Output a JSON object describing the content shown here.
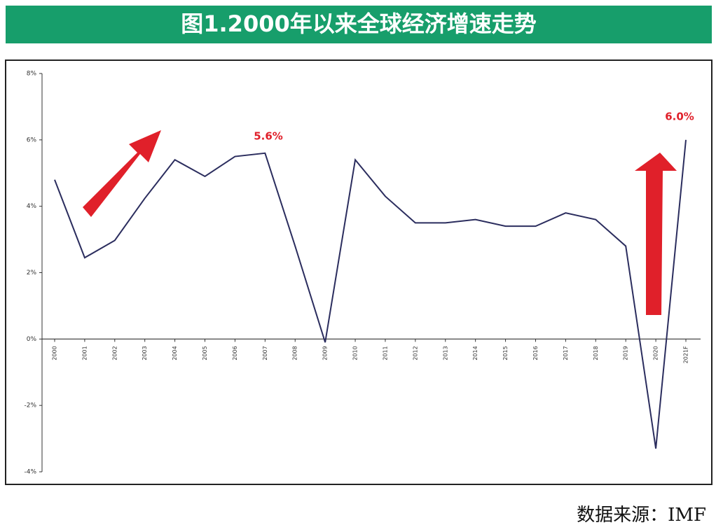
{
  "chart_data": {
    "type": "line",
    "title": "图1.2000年以来全球经济增速走势",
    "categories": [
      "2000",
      "2001",
      "2002",
      "2003",
      "2004",
      "2005",
      "2006",
      "2007",
      "2008",
      "2009",
      "2010",
      "2011",
      "2012",
      "2013",
      "2014",
      "2015",
      "2016",
      "2017",
      "2018",
      "2019",
      "2020",
      "2021F"
    ],
    "series": [
      {
        "name": "全球经济增速",
        "color": "#2b2d5e",
        "values": [
          4.8,
          2.45,
          2.97,
          4.24,
          5.4,
          4.9,
          5.5,
          5.6,
          2.8,
          -0.1,
          5.4,
          4.3,
          3.5,
          3.5,
          3.6,
          3.4,
          3.4,
          3.8,
          3.6,
          2.8,
          -3.3,
          6.0
        ]
      }
    ],
    "ylim": [
      -4,
      8
    ],
    "yticks": [
      {
        "value": -4,
        "label": "-4%"
      },
      {
        "value": -2,
        "label": "-2%"
      },
      {
        "value": 0,
        "label": "0%"
      },
      {
        "value": 2,
        "label": "2%"
      },
      {
        "value": 4,
        "label": "4%"
      },
      {
        "value": 6,
        "label": "6%"
      },
      {
        "value": 8,
        "label": "8%"
      }
    ],
    "annotations": [
      "5.6%",
      "6.0%"
    ],
    "source": "数据来源：IMF"
  }
}
